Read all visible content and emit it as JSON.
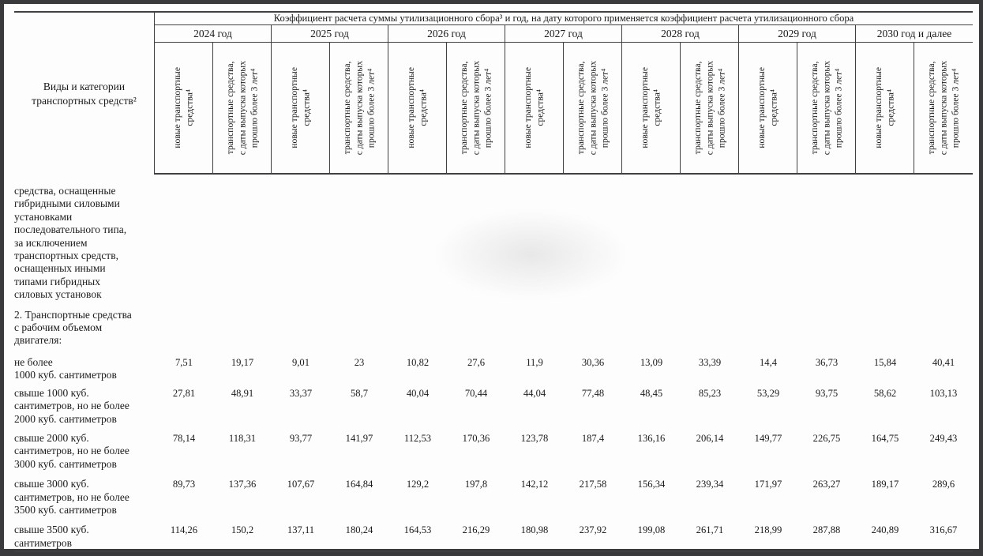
{
  "frame": {
    "border_color": "#3a3a3c",
    "page_color": "#fdfdfd"
  },
  "table": {
    "title": "Коэффициент расчета суммы утилизационного сбора³ и год, на дату которого применяется коэффициент расчета утилизационного сбора",
    "row_header": "Виды и категории\nтранспортных средств²",
    "years": [
      "2024 год",
      "2025 год",
      "2026 год",
      "2027 год",
      "2028 год",
      "2029 год",
      "2030  год и далее"
    ],
    "subcolumns": {
      "new": "новые транспортные\nсредства⁴",
      "aged": "транспортные средства,\nс даты выпуска которых\nпрошло более 3 лет⁴"
    },
    "rows": [
      {
        "label": "средства, оснащенные\nгибридными силовыми\nустановками\nпоследовательного типа,\nза исключением\nтранспортных средств,\nоснащенных иными\nтипами гибридных\nсиловых установок",
        "values": []
      },
      {
        "label": "2. Транспортные средства\nс рабочим объемом\nдвигателя:",
        "values": []
      },
      {
        "label": "не более\n1000 куб. сантиметров",
        "values": [
          "7,51",
          "19,17",
          "9,01",
          "23",
          "10,82",
          "27,6",
          "11,9",
          "30,36",
          "13,09",
          "33,39",
          "14,4",
          "36,73",
          "15,84",
          "40,41"
        ]
      },
      {
        "label": "свыше 1000 куб.\nсантиметров, но не более\n2000 куб. сантиметров",
        "values": [
          "27,81",
          "48,91",
          "33,37",
          "58,7",
          "40,04",
          "70,44",
          "44,04",
          "77,48",
          "48,45",
          "85,23",
          "53,29",
          "93,75",
          "58,62",
          "103,13"
        ]
      },
      {
        "label": "свыше 2000 куб.\nсантиметров, но не более\n3000 куб. сантиметров",
        "values": [
          "78,14",
          "118,31",
          "93,77",
          "141,97",
          "112,53",
          "170,36",
          "123,78",
          "187,4",
          "136,16",
          "206,14",
          "149,77",
          "226,75",
          "164,75",
          "249,43"
        ]
      },
      {
        "label": "свыше 3000 куб.\nсантиметров, но не более\n3500 куб. сантиметров",
        "values": [
          "89,73",
          "137,36",
          "107,67",
          "164,84",
          "129,2",
          "197,8",
          "142,12",
          "217,58",
          "156,34",
          "239,34",
          "171,97",
          "263,27",
          "189,17",
          "289,6"
        ]
      },
      {
        "label": "свыше 3500 куб.\nсантиметров",
        "values": [
          "114,26",
          "150,2",
          "137,11",
          "180,24",
          "164,53",
          "216,29",
          "180,98",
          "237,92",
          "199,08",
          "261,71",
          "218,99",
          "287,88",
          "240,89",
          "316,67"
        ]
      }
    ]
  }
}
